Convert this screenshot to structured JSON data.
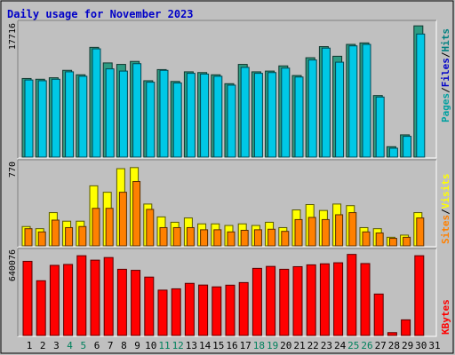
{
  "title": "Daily usage for November 2023",
  "colors": {
    "background": "#c0c0c0",
    "frame": "#ffffff",
    "title": "#0000c8",
    "hits": "#008080",
    "hits_fill": "#2e9b82",
    "files": "#00c8e6",
    "pages": "#00a0a0",
    "visits": "#ffff00",
    "sites": "#ff8000",
    "kbytes": "#ff0000",
    "weekend_label": "#00805c",
    "weekday_label": "#000000"
  },
  "chart_data": [
    {
      "type": "bar",
      "panel": "hits-files-pages",
      "ymax_label": "17716",
      "ymax": 17716,
      "legend": [
        "Pages",
        "Files",
        "Hits"
      ],
      "categories": [
        "1",
        "2",
        "3",
        "4",
        "5",
        "6",
        "7",
        "8",
        "9",
        "10",
        "11",
        "12",
        "13",
        "14",
        "15",
        "16",
        "17",
        "18",
        "19",
        "20",
        "21",
        "22",
        "23",
        "24",
        "25",
        "26",
        "27",
        "28",
        "29",
        "30",
        "31"
      ],
      "series": [
        {
          "name": "Hits",
          "values": [
            10600,
            10500,
            10700,
            11700,
            11100,
            14800,
            12700,
            12500,
            12900,
            10300,
            11800,
            10200,
            11500,
            11400,
            11100,
            9900,
            12500,
            11500,
            11600,
            12300,
            11000,
            13400,
            14900,
            13600,
            15200,
            15400,
            8300,
            1400,
            3000,
            17700,
            0
          ]
        },
        {
          "name": "Files",
          "values": [
            10400,
            10300,
            10500,
            11500,
            10900,
            14600,
            11900,
            11600,
            12600,
            10100,
            11700,
            10000,
            11300,
            11200,
            10900,
            9700,
            12100,
            11300,
            11400,
            12000,
            10800,
            13100,
            14700,
            12800,
            15000,
            15200,
            8100,
            1200,
            2800,
            16600,
            0
          ]
        },
        {
          "name": "Pages",
          "values": [
            0,
            0,
            0,
            0,
            0,
            0,
            0,
            0,
            0,
            0,
            0,
            0,
            0,
            0,
            0,
            0,
            0,
            0,
            0,
            0,
            0,
            0,
            0,
            0,
            0,
            0,
            0,
            0,
            0,
            0,
            0
          ]
        }
      ]
    },
    {
      "type": "bar",
      "panel": "visits-sites",
      "ymax_label": "770",
      "ymax": 770,
      "legend": [
        "Sites",
        "Visits"
      ],
      "series": [
        {
          "name": "Visits",
          "values": [
            180,
            160,
            310,
            230,
            230,
            560,
            500,
            720,
            730,
            390,
            270,
            220,
            260,
            205,
            205,
            190,
            205,
            190,
            220,
            170,
            335,
            385,
            330,
            390,
            375,
            170,
            160,
            80,
            100,
            310,
            0
          ]
        },
        {
          "name": "Sites",
          "values": [
            160,
            130,
            240,
            170,
            180,
            350,
            350,
            500,
            600,
            340,
            170,
            170,
            170,
            150,
            150,
            130,
            145,
            150,
            155,
            135,
            245,
            265,
            245,
            290,
            310,
            130,
            120,
            70,
            80,
            260,
            0
          ]
        }
      ]
    },
    {
      "type": "bar",
      "panel": "kbytes",
      "ymax_label": "640076",
      "ymax": 640076,
      "legend": [
        "KBytes"
      ],
      "series": [
        {
          "name": "KBytes",
          "values": [
            569000,
            420000,
            538000,
            545000,
            612000,
            578000,
            598000,
            508000,
            500000,
            448000,
            348000,
            358000,
            400000,
            387000,
            373000,
            386000,
            406000,
            515000,
            530000,
            508000,
            528000,
            542000,
            550000,
            558000,
            622000,
            552000,
            318000,
            22000,
            120000,
            612000,
            0
          ]
        }
      ]
    }
  ]
}
